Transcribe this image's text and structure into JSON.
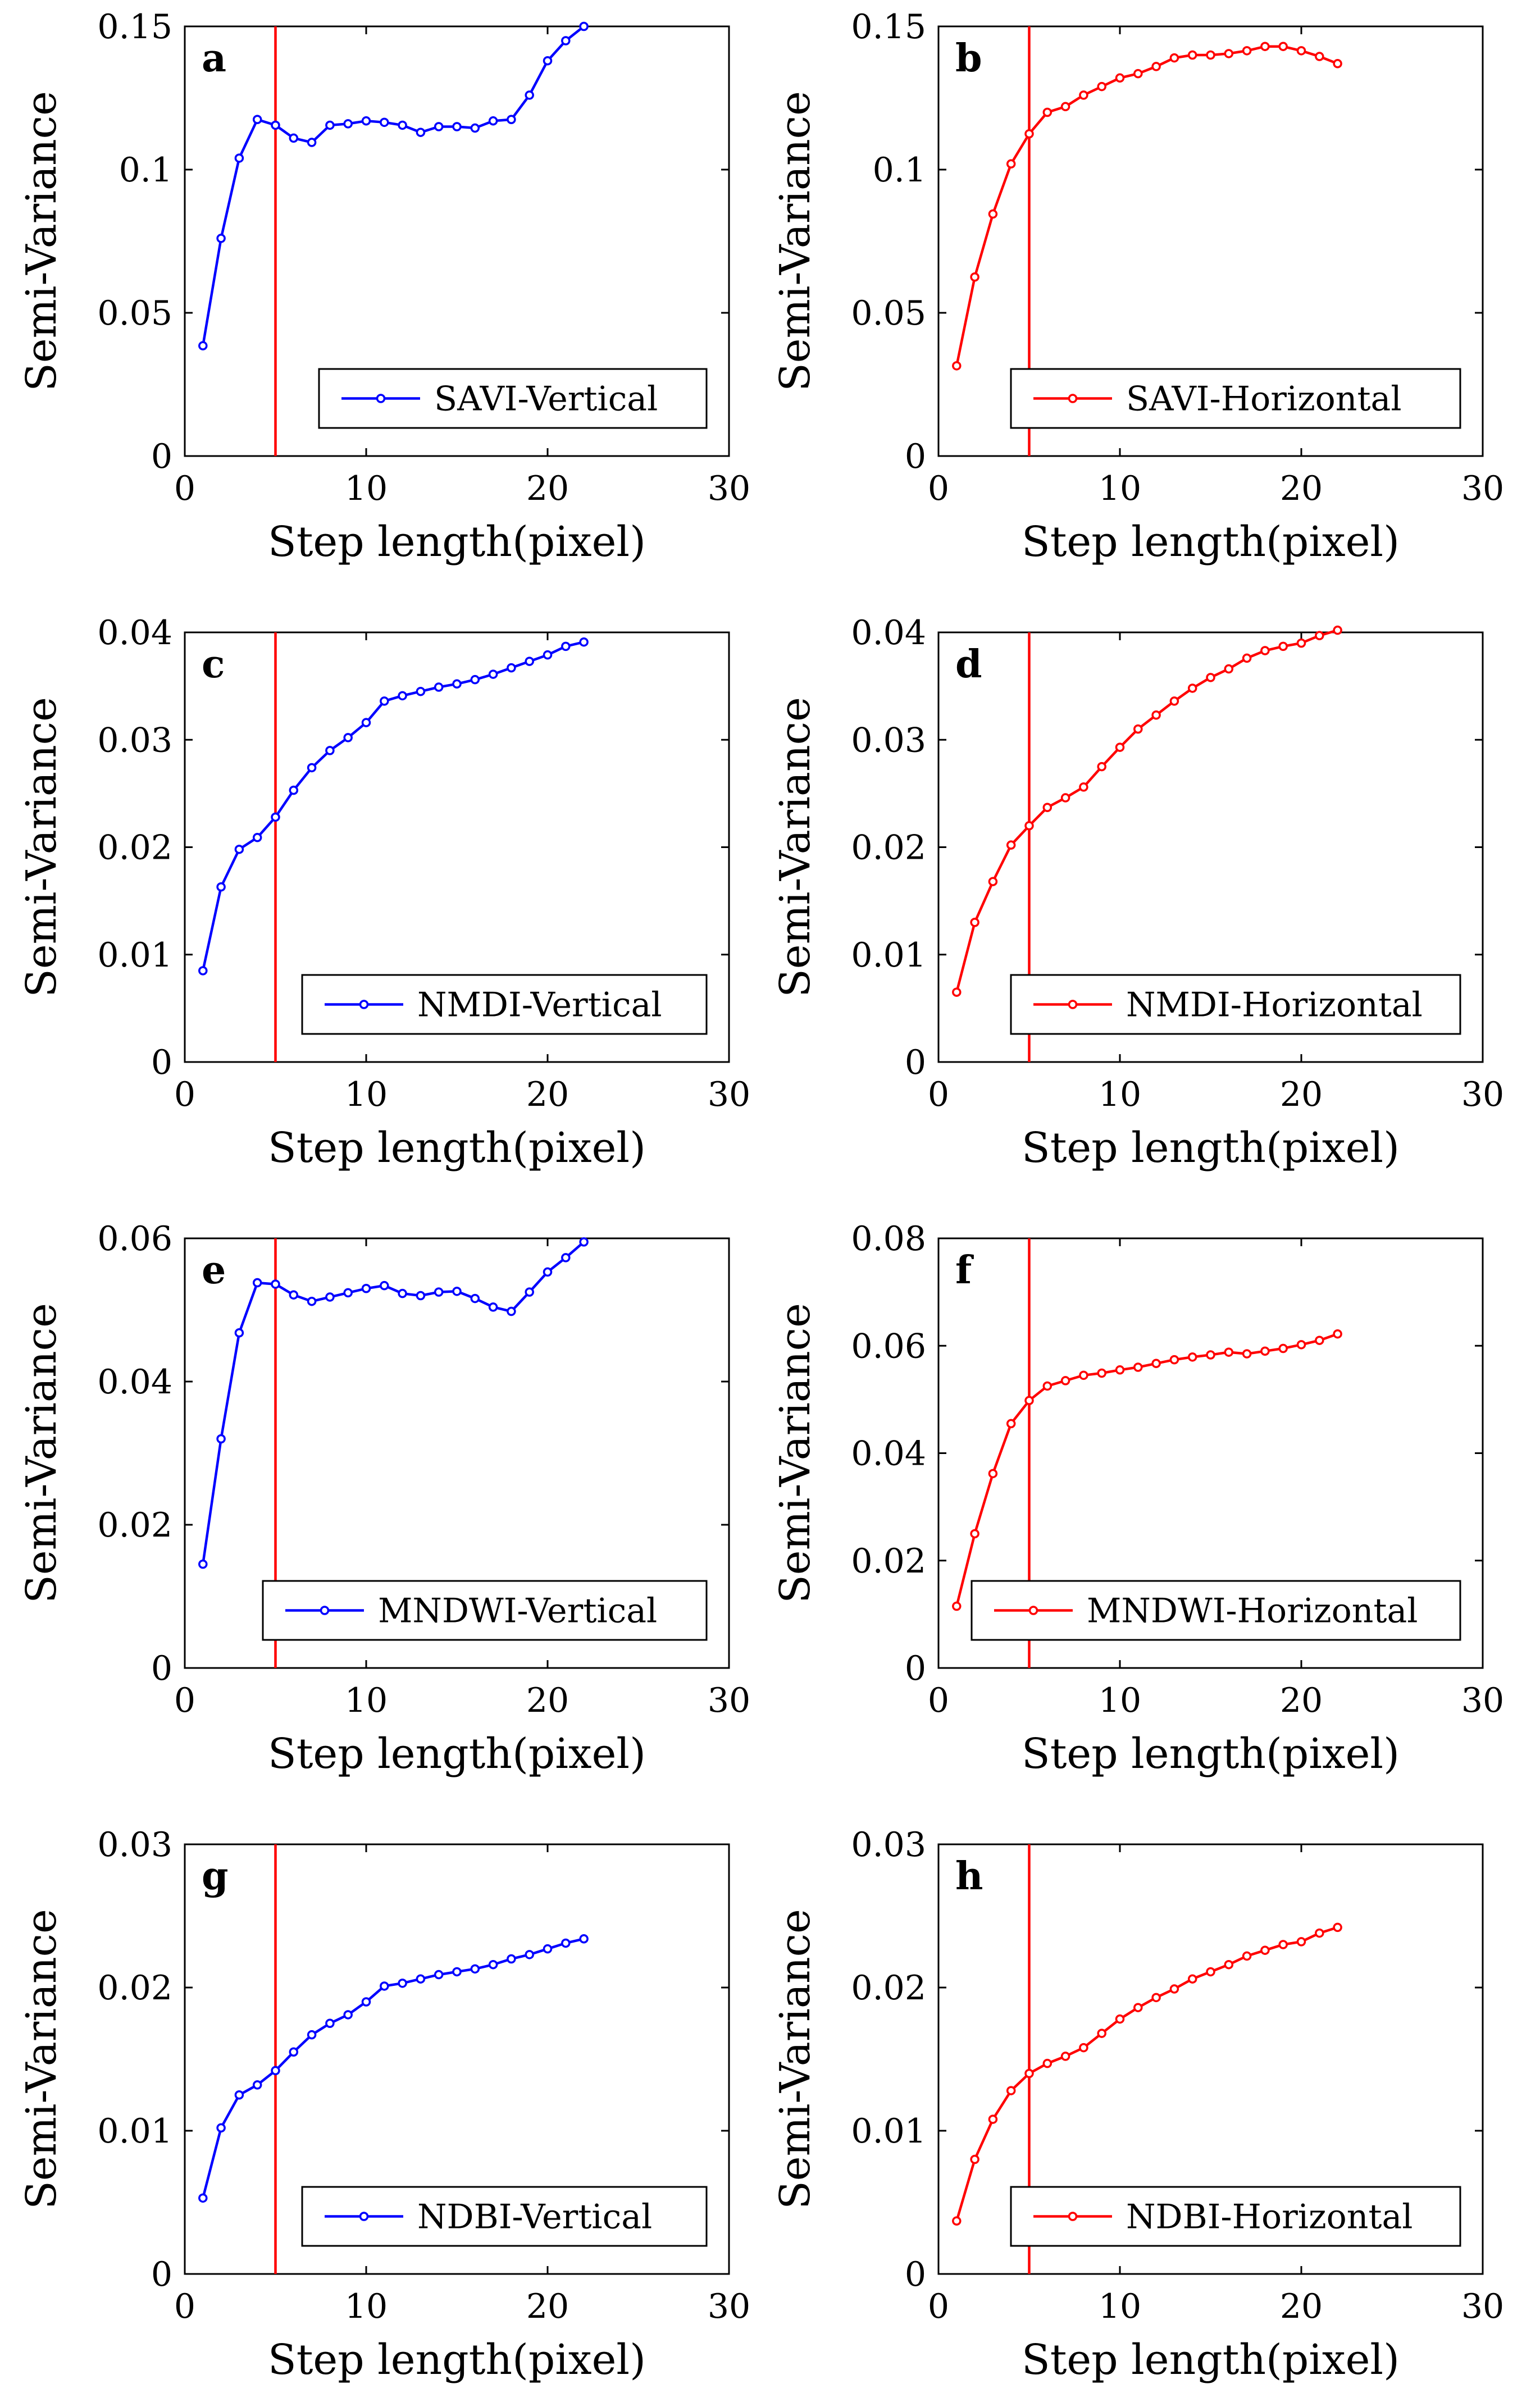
{
  "colors": {
    "vertical": "#0000ff",
    "horizontal": "#ff0000",
    "reference_line": "#ff0000"
  },
  "chart_data": [
    {
      "panel": "a",
      "type": "line",
      "xlabel": "Step length(pixel)",
      "ylabel": "Semi-Variance",
      "xlim": [
        0,
        30
      ],
      "ylim": [
        0,
        0.15
      ],
      "xticks": [
        0,
        10,
        20,
        30
      ],
      "xtick_labels": [
        "0",
        "10",
        "20",
        "30"
      ],
      "yticks": [
        0,
        0.05,
        0.1,
        0.15
      ],
      "ytick_labels": [
        "0",
        "0.05",
        "0.1",
        "0.15"
      ],
      "vline_x": 5,
      "legend": "SAVI-Vertical",
      "color": "#0000ff",
      "x": [
        1,
        2,
        3,
        4,
        5,
        6,
        7,
        8,
        9,
        10,
        11,
        12,
        13,
        14,
        15,
        16,
        17,
        18,
        19,
        20,
        21,
        22
      ],
      "values": [
        0.0385,
        0.076,
        0.104,
        0.1175,
        0.1155,
        0.111,
        0.1095,
        0.1155,
        0.116,
        0.117,
        0.1165,
        0.1155,
        0.113,
        0.115,
        0.115,
        0.1145,
        0.117,
        0.1175,
        0.126,
        0.138,
        0.145,
        0.15
      ]
    },
    {
      "panel": "b",
      "type": "line",
      "xlabel": "Step length(pixel)",
      "ylabel": "Semi-Variance",
      "xlim": [
        0,
        30
      ],
      "ylim": [
        0,
        0.15
      ],
      "xticks": [
        0,
        10,
        20,
        30
      ],
      "xtick_labels": [
        "0",
        "10",
        "20",
        "30"
      ],
      "yticks": [
        0,
        0.05,
        0.1,
        0.15
      ],
      "ytick_labels": [
        "0",
        "0.05",
        "0.1",
        "0.15"
      ],
      "vline_x": 5,
      "legend": "SAVI-Horizontal",
      "color": "#ff0000",
      "x": [
        1,
        2,
        3,
        4,
        5,
        6,
        7,
        8,
        9,
        10,
        11,
        12,
        13,
        14,
        15,
        16,
        17,
        18,
        19,
        20,
        21,
        22
      ],
      "values": [
        0.0315,
        0.0625,
        0.0845,
        0.102,
        0.1125,
        0.12,
        0.122,
        0.126,
        0.129,
        0.132,
        0.1335,
        0.136,
        0.139,
        0.14,
        0.14,
        0.1405,
        0.1415,
        0.143,
        0.143,
        0.1415,
        0.1395,
        0.137
      ]
    },
    {
      "panel": "c",
      "type": "line",
      "xlabel": "Step length(pixel)",
      "ylabel": "Semi-Variance",
      "xlim": [
        0,
        30
      ],
      "ylim": [
        0,
        0.04
      ],
      "xticks": [
        0,
        10,
        20,
        30
      ],
      "xtick_labels": [
        "0",
        "10",
        "20",
        "30"
      ],
      "yticks": [
        0,
        0.01,
        0.02,
        0.03,
        0.04
      ],
      "ytick_labels": [
        "0",
        "0.01",
        "0.02",
        "0.03",
        "0.04"
      ],
      "vline_x": 5,
      "legend": "NMDI-Vertical",
      "color": "#0000ff",
      "x": [
        1,
        2,
        3,
        4,
        5,
        6,
        7,
        8,
        9,
        10,
        11,
        12,
        13,
        14,
        15,
        16,
        17,
        18,
        19,
        20,
        21,
        22
      ],
      "values": [
        0.0085,
        0.0163,
        0.0198,
        0.0209,
        0.0228,
        0.0253,
        0.0274,
        0.029,
        0.0302,
        0.0316,
        0.0336,
        0.0341,
        0.0345,
        0.0349,
        0.0352,
        0.0356,
        0.0361,
        0.0367,
        0.0373,
        0.0379,
        0.0387,
        0.0391
      ]
    },
    {
      "panel": "d",
      "type": "line",
      "xlabel": "Step length(pixel)",
      "ylabel": "Semi-Variance",
      "xlim": [
        0,
        30
      ],
      "ylim": [
        0,
        0.04
      ],
      "xticks": [
        0,
        10,
        20,
        30
      ],
      "xtick_labels": [
        "0",
        "10",
        "20",
        "30"
      ],
      "yticks": [
        0,
        0.01,
        0.02,
        0.03,
        0.04
      ],
      "ytick_labels": [
        "0",
        "0.01",
        "0.02",
        "0.03",
        "0.04"
      ],
      "vline_x": 5,
      "legend": "NMDI-Horizontal",
      "color": "#ff0000",
      "x": [
        1,
        2,
        3,
        4,
        5,
        6,
        7,
        8,
        9,
        10,
        11,
        12,
        13,
        14,
        15,
        16,
        17,
        18,
        19,
        20,
        21,
        22
      ],
      "values": [
        0.0065,
        0.013,
        0.0168,
        0.0202,
        0.022,
        0.0237,
        0.0246,
        0.0256,
        0.0275,
        0.0293,
        0.031,
        0.0323,
        0.0336,
        0.0348,
        0.0358,
        0.0366,
        0.0376,
        0.0383,
        0.0387,
        0.039,
        0.0397,
        0.0402
      ]
    },
    {
      "panel": "e",
      "type": "line",
      "xlabel": "Step length(pixel)",
      "ylabel": "Semi-Variance",
      "xlim": [
        0,
        30
      ],
      "ylim": [
        0,
        0.06
      ],
      "xticks": [
        0,
        10,
        20,
        30
      ],
      "xtick_labels": [
        "0",
        "10",
        "20",
        "30"
      ],
      "yticks": [
        0,
        0.02,
        0.04,
        0.06
      ],
      "ytick_labels": [
        "0",
        "0.02",
        "0.04",
        "0.06"
      ],
      "vline_x": 5,
      "legend": "MNDWI-Vertical",
      "color": "#0000ff",
      "x": [
        1,
        2,
        3,
        4,
        5,
        6,
        7,
        8,
        9,
        10,
        11,
        12,
        13,
        14,
        15,
        16,
        17,
        18,
        19,
        20,
        21,
        22
      ],
      "values": [
        0.0145,
        0.032,
        0.0468,
        0.0538,
        0.0536,
        0.0521,
        0.0512,
        0.0518,
        0.0524,
        0.053,
        0.0534,
        0.0523,
        0.052,
        0.0525,
        0.0526,
        0.0516,
        0.0504,
        0.0498,
        0.0525,
        0.0553,
        0.0573,
        0.0595
      ]
    },
    {
      "panel": "f",
      "type": "line",
      "xlabel": "Step length(pixel)",
      "ylabel": "Semi-Variance",
      "xlim": [
        0,
        30
      ],
      "ylim": [
        0,
        0.08
      ],
      "xticks": [
        0,
        10,
        20,
        30
      ],
      "xtick_labels": [
        "0",
        "10",
        "20",
        "30"
      ],
      "yticks": [
        0,
        0.02,
        0.04,
        0.06,
        0.08
      ],
      "ytick_labels": [
        "0",
        "0.02",
        "0.04",
        "0.06",
        "0.08"
      ],
      "vline_x": 5,
      "legend": "MNDWI-Horizontal",
      "color": "#ff0000",
      "x": [
        1,
        2,
        3,
        4,
        5,
        6,
        7,
        8,
        9,
        10,
        11,
        12,
        13,
        14,
        15,
        16,
        17,
        18,
        19,
        20,
        21,
        22
      ],
      "values": [
        0.0115,
        0.025,
        0.0362,
        0.0455,
        0.0498,
        0.0525,
        0.0535,
        0.0545,
        0.0549,
        0.0555,
        0.056,
        0.0567,
        0.0574,
        0.0579,
        0.0583,
        0.0588,
        0.0585,
        0.059,
        0.0595,
        0.0602,
        0.061,
        0.0622
      ]
    },
    {
      "panel": "g",
      "type": "line",
      "xlabel": "Step length(pixel)",
      "ylabel": "Semi-Variance",
      "xlim": [
        0,
        30
      ],
      "ylim": [
        0,
        0.03
      ],
      "xticks": [
        0,
        10,
        20,
        30
      ],
      "xtick_labels": [
        "0",
        "10",
        "20",
        "30"
      ],
      "yticks": [
        0,
        0.01,
        0.02,
        0.03
      ],
      "ytick_labels": [
        "0",
        "0.01",
        "0.02",
        "0.03"
      ],
      "vline_x": 5,
      "legend": "NDBI-Vertical",
      "color": "#0000ff",
      "x": [
        1,
        2,
        3,
        4,
        5,
        6,
        7,
        8,
        9,
        10,
        11,
        12,
        13,
        14,
        15,
        16,
        17,
        18,
        19,
        20,
        21,
        22
      ],
      "values": [
        0.0053,
        0.0102,
        0.0125,
        0.0132,
        0.0142,
        0.0155,
        0.0167,
        0.0175,
        0.0181,
        0.019,
        0.0201,
        0.0203,
        0.0206,
        0.0209,
        0.0211,
        0.0213,
        0.0216,
        0.022,
        0.0223,
        0.0227,
        0.0231,
        0.0234
      ]
    },
    {
      "panel": "h",
      "type": "line",
      "xlabel": "Step length(pixel)",
      "ylabel": "Semi-Variance",
      "xlim": [
        0,
        30
      ],
      "ylim": [
        0,
        0.03
      ],
      "xticks": [
        0,
        10,
        20,
        30
      ],
      "xtick_labels": [
        "0",
        "10",
        "20",
        "30"
      ],
      "yticks": [
        0,
        0.01,
        0.02,
        0.03
      ],
      "ytick_labels": [
        "0",
        "0.01",
        "0.02",
        "0.03"
      ],
      "vline_x": 5,
      "legend": "NDBI-Horizontal",
      "color": "#ff0000",
      "x": [
        1,
        2,
        3,
        4,
        5,
        6,
        7,
        8,
        9,
        10,
        11,
        12,
        13,
        14,
        15,
        16,
        17,
        18,
        19,
        20,
        21,
        22
      ],
      "values": [
        0.0037,
        0.008,
        0.0108,
        0.0128,
        0.014,
        0.0147,
        0.0152,
        0.0158,
        0.0168,
        0.0178,
        0.0186,
        0.0193,
        0.0199,
        0.0206,
        0.0211,
        0.0216,
        0.0222,
        0.0226,
        0.023,
        0.0232,
        0.0238,
        0.0242
      ]
    }
  ]
}
